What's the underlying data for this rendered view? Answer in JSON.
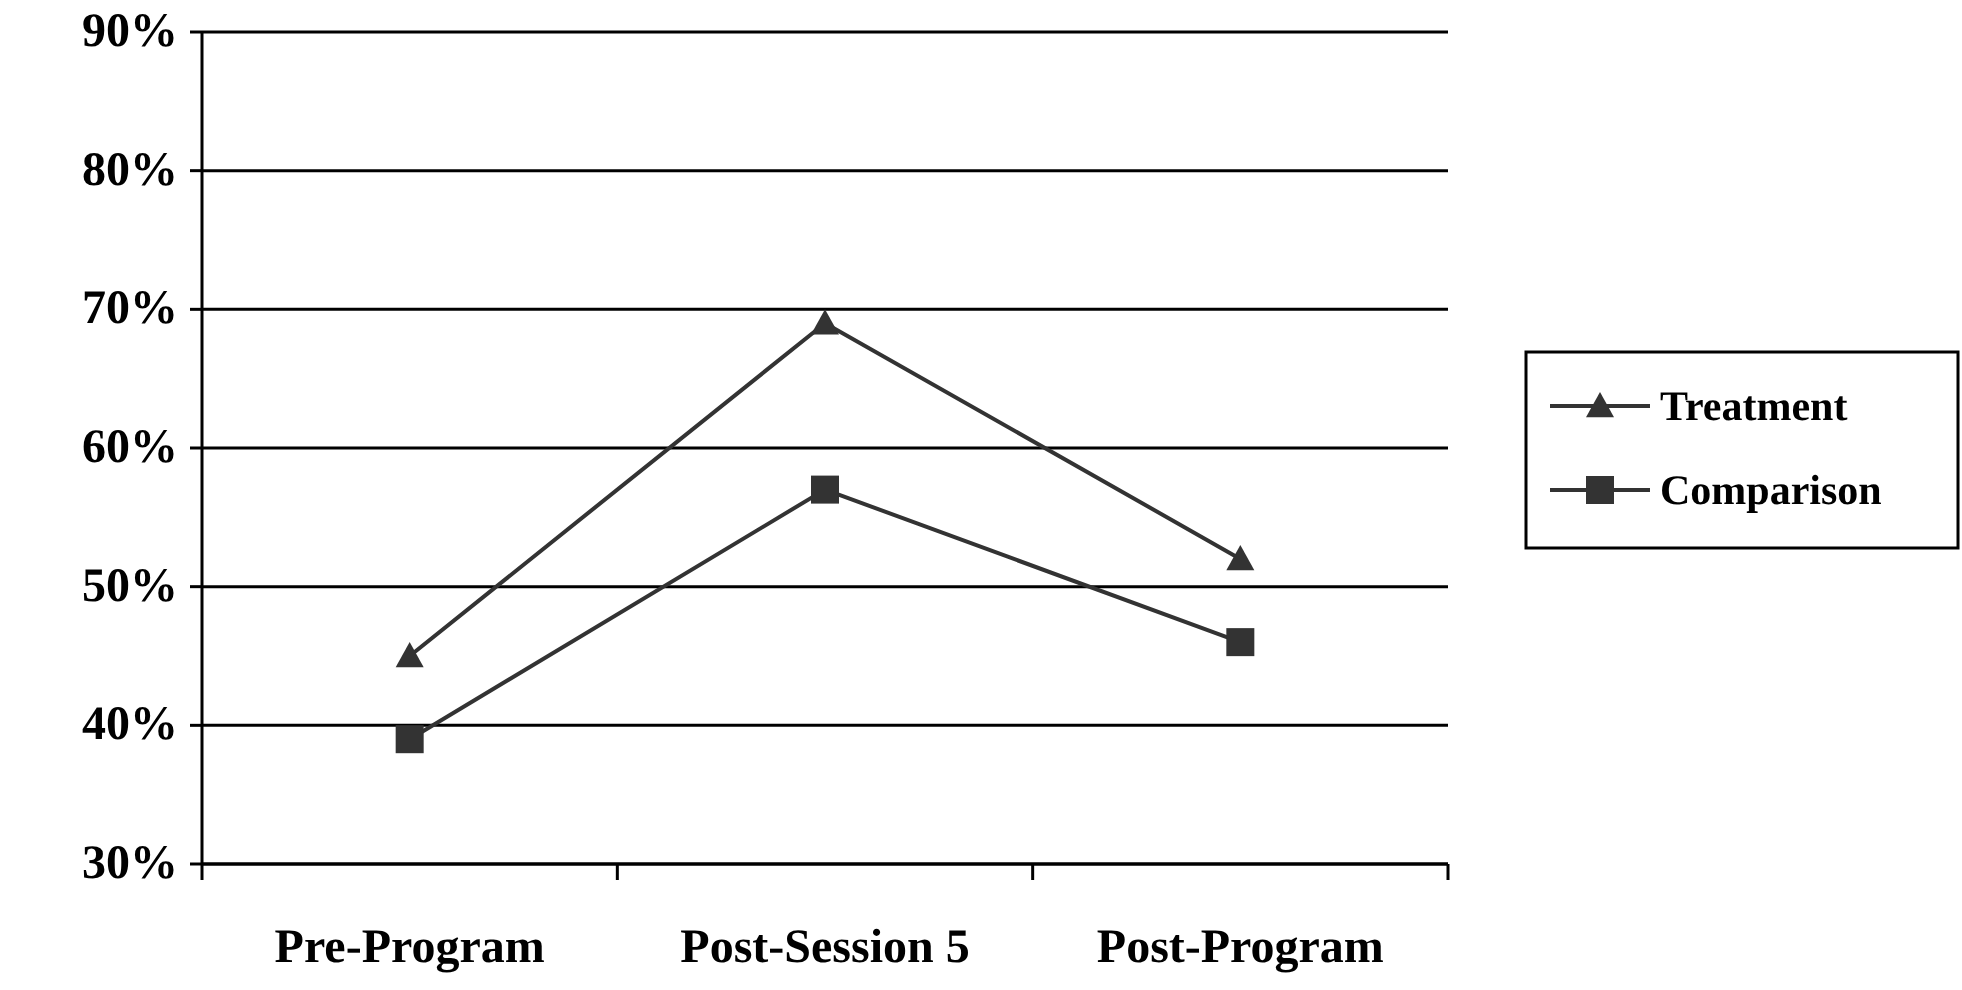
{
  "chart_data": {
    "type": "line",
    "categories": [
      "Pre-Program",
      "Post-Session 5",
      "Post-Program"
    ],
    "series": [
      {
        "name": "Treatment",
        "color": "#333333",
        "marker": "triangle",
        "values": [
          45,
          69,
          52
        ]
      },
      {
        "name": "Comparison",
        "color": "#333333",
        "marker": "square",
        "values": [
          39,
          57,
          46
        ]
      }
    ],
    "ylim": [
      30,
      90
    ],
    "yticks": [
      {
        "value": 30,
        "label": "30%"
      },
      {
        "value": 40,
        "label": "40%"
      },
      {
        "value": 50,
        "label": "50%"
      },
      {
        "value": 60,
        "label": "60%"
      },
      {
        "value": 70,
        "label": "70%"
      },
      {
        "value": 80,
        "label": "80%"
      },
      {
        "value": 90,
        "label": "90%"
      }
    ],
    "grid": "y",
    "legend": "right",
    "line_style": "solid"
  }
}
